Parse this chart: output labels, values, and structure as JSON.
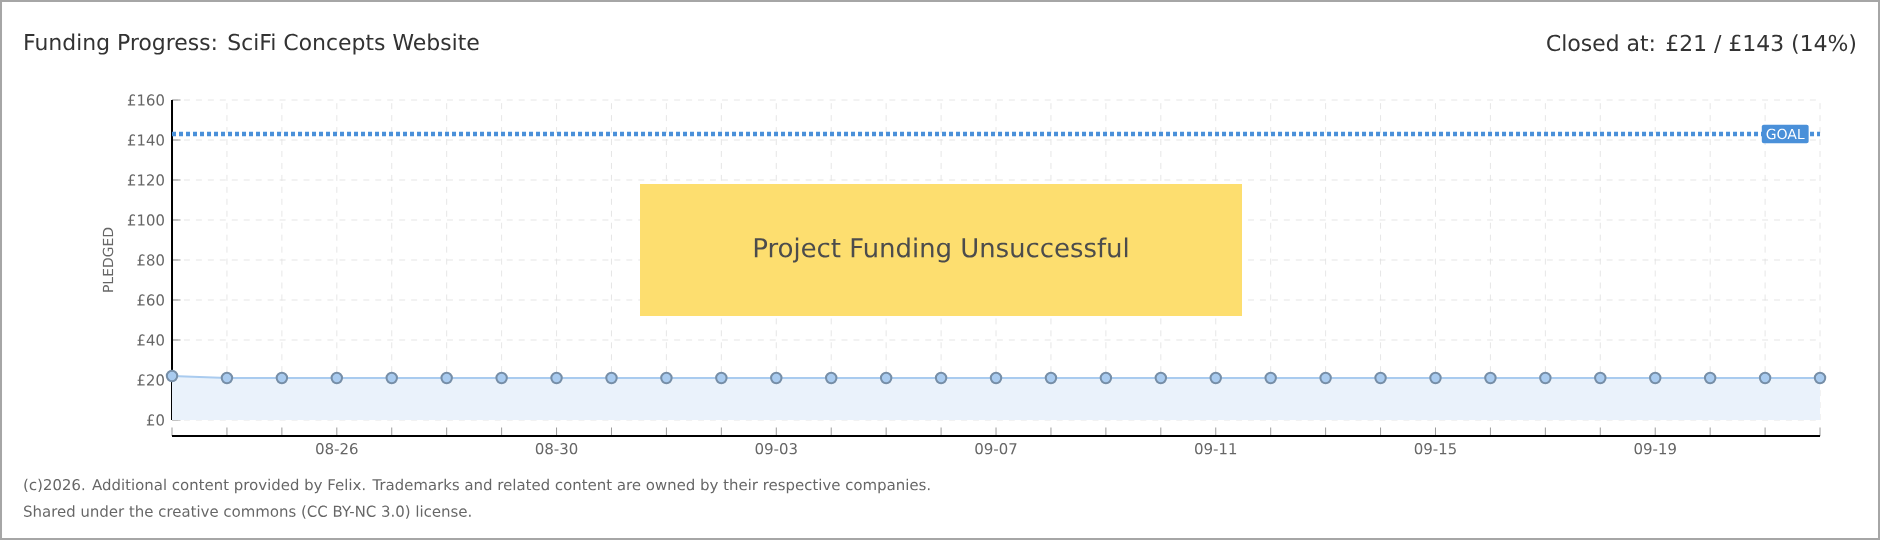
{
  "chart_data": {
    "type": "area",
    "title": "Funding Progress: SciFi Concepts Website",
    "subtitle": "Closed at: £21 / £143 (14%)",
    "ylabel": "PLEDGED",
    "categories": [
      null,
      null,
      null,
      "08-26",
      null,
      null,
      null,
      "08-30",
      null,
      null,
      null,
      "09-03",
      null,
      null,
      null,
      "09-07",
      null,
      null,
      null,
      "09-11",
      null,
      null,
      null,
      "09-15",
      null,
      null,
      null,
      "09-19",
      null,
      null,
      null
    ],
    "series": [
      {
        "color": "#a9cbef",
        "values": [
          22,
          21,
          21,
          21,
          21,
          21,
          21,
          21,
          21,
          21,
          21,
          21,
          21,
          21,
          21,
          21,
          21,
          21,
          21,
          21,
          21,
          21,
          21,
          21,
          21,
          21,
          21,
          21,
          21,
          21,
          21
        ]
      }
    ],
    "ylim": [
      0,
      160
    ],
    "yticks": [
      {
        "value": 0,
        "label": "£0"
      },
      {
        "value": 20,
        "label": "£20"
      },
      {
        "value": 40,
        "label": "£40"
      },
      {
        "value": 60,
        "label": "£60"
      },
      {
        "value": 80,
        "label": "£80"
      },
      {
        "value": 100,
        "label": "£100"
      },
      {
        "value": 120,
        "label": "£120"
      },
      {
        "value": 140,
        "label": "£140"
      },
      {
        "value": 160,
        "label": "£160"
      }
    ],
    "ref_lines": [
      {
        "axis": "y",
        "value": 143,
        "label": "GOAL",
        "color": "#4a90d9",
        "line_style": "dotted"
      }
    ],
    "annotations": [
      "Project Funding Unsuccessful",
      "(c)2026. Additional content provided by Felix. Trademarks and related content are owned by their respective companies.",
      "Shared under the creative commons (CC BY-NC 3.0) license."
    ],
    "grid": true,
    "marker": "circle",
    "line_style": "solid"
  }
}
